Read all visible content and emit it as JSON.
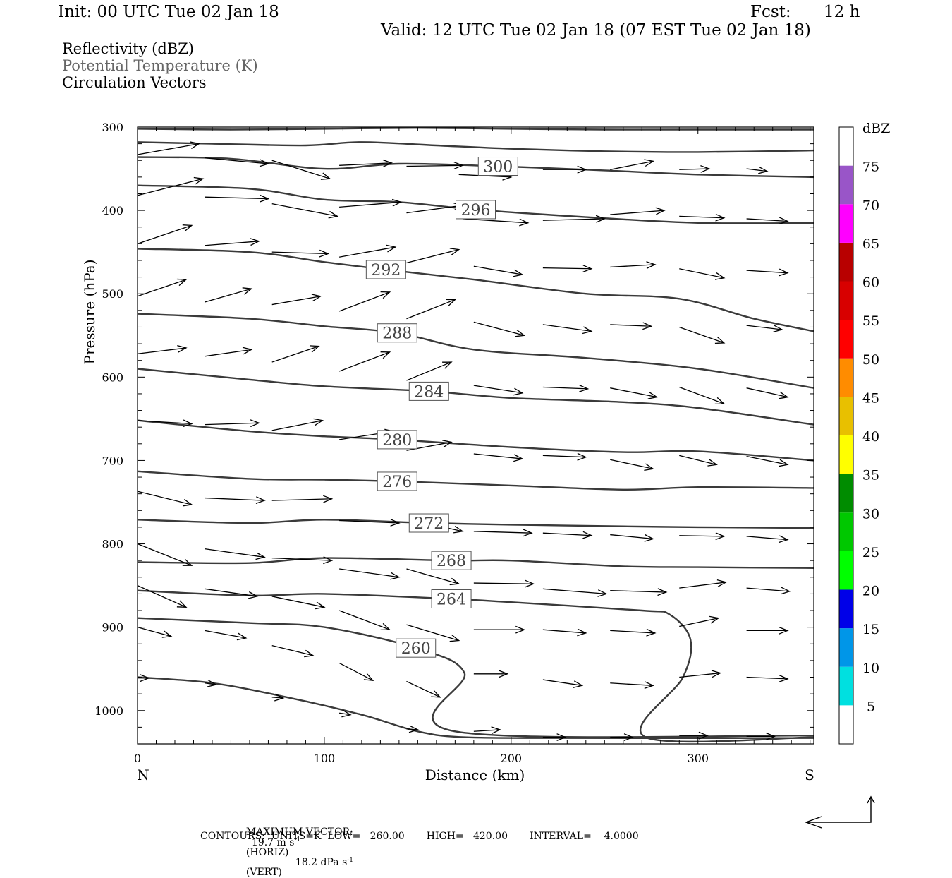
{
  "header": {
    "init": "Init: 00 UTC Tue 02 Jan 18",
    "fcst_label": "Fcst:",
    "fcst_value": "12 h",
    "valid": "Valid: 12 UTC Tue 02 Jan 18 (07 EST Tue 02 Jan 18)"
  },
  "legend": {
    "line1": "Reflectivity (dBZ)",
    "line2": "Potential Temperature (K)",
    "line3": "Circulation Vectors",
    "line2_color": "#666666"
  },
  "footer": {
    "max_vector_label": "MAXIMUM VECTOR:",
    "horiz_value": "19.7 m s",
    "horiz_exp": "-1",
    "horiz_tag": "(HORIZ)",
    "vert_value": "18.2 dPa s",
    "vert_exp": "-1",
    "vert_tag": "(VERT)",
    "contours_line": "CONTOURS:  UNITS=K  LOW=   260.00       HIGH=   420.00       INTERVAL=    4.0000"
  },
  "chart_data": {
    "type": "line",
    "xlabel": "Distance (km)",
    "ylabel": "Pressure (hPa)",
    "x_ticks": [
      0,
      100,
      200,
      300
    ],
    "y_ticks": [
      300,
      400,
      500,
      600,
      700,
      800,
      900,
      1000
    ],
    "xlim": [
      0,
      362
    ],
    "ylim": [
      300,
      1040
    ],
    "y_inverted": true,
    "left_end_label": "N",
    "right_end_label": "S",
    "colorbar": {
      "unit": "dBZ",
      "levels": [
        5,
        10,
        15,
        20,
        25,
        30,
        35,
        40,
        45,
        50,
        55,
        60,
        65,
        70,
        75
      ],
      "colors": [
        "#ffffff",
        "#00e0e0",
        "#0096e8",
        "#0000e8",
        "#00ff00",
        "#00c800",
        "#008c00",
        "#ffff00",
        "#e8c000",
        "#ff8c00",
        "#ff0000",
        "#d80000",
        "#b80000",
        "#ff00ff",
        "#9955c8",
        "#ffffff"
      ]
    },
    "isentropes": [
      {
        "label": "",
        "points": [
          [
            0,
            302
          ],
          [
            50,
            303
          ],
          [
            100,
            302
          ],
          [
            150,
            301
          ],
          [
            200,
            302
          ],
          [
            250,
            303
          ],
          [
            300,
            303
          ],
          [
            362,
            303
          ]
        ]
      },
      {
        "label": "",
        "points": [
          [
            0,
            318
          ],
          [
            40,
            320
          ],
          [
            90,
            322
          ],
          [
            120,
            318
          ],
          [
            160,
            322
          ],
          [
            200,
            326
          ],
          [
            250,
            329
          ],
          [
            300,
            330
          ],
          [
            362,
            328
          ]
        ]
      },
      {
        "label": "300",
        "label_x": 193,
        "points": [
          [
            0,
            336
          ],
          [
            50,
            338
          ],
          [
            100,
            350
          ],
          [
            140,
            344
          ],
          [
            193,
            347
          ],
          [
            250,
            352
          ],
          [
            300,
            357
          ],
          [
            362,
            360
          ]
        ]
      },
      {
        "label": "296",
        "label_x": 181,
        "points": [
          [
            0,
            370
          ],
          [
            60,
            374
          ],
          [
            100,
            387
          ],
          [
            140,
            390
          ],
          [
            181,
            399
          ],
          [
            240,
            408
          ],
          [
            300,
            415
          ],
          [
            362,
            415
          ]
        ]
      },
      {
        "label": "292",
        "label_x": 133,
        "points": [
          [
            0,
            446
          ],
          [
            60,
            450
          ],
          [
            100,
            462
          ],
          [
            133,
            471
          ],
          [
            180,
            483
          ],
          [
            240,
            500
          ],
          [
            290,
            506
          ],
          [
            330,
            530
          ],
          [
            362,
            545
          ]
        ]
      },
      {
        "label": "288",
        "label_x": 139,
        "points": [
          [
            0,
            524
          ],
          [
            60,
            530
          ],
          [
            100,
            539
          ],
          [
            139,
            547
          ],
          [
            180,
            567
          ],
          [
            240,
            577
          ],
          [
            300,
            590
          ],
          [
            362,
            613
          ]
        ]
      },
      {
        "label": "284",
        "label_x": 156,
        "points": [
          [
            0,
            590
          ],
          [
            60,
            603
          ],
          [
            100,
            611
          ],
          [
            156,
            617
          ],
          [
            200,
            625
          ],
          [
            260,
            630
          ],
          [
            300,
            637
          ],
          [
            362,
            657
          ]
        ]
      },
      {
        "label": "280",
        "label_x": 139,
        "points": [
          [
            0,
            652
          ],
          [
            60,
            665
          ],
          [
            100,
            671
          ],
          [
            139,
            675
          ],
          [
            200,
            684
          ],
          [
            260,
            690
          ],
          [
            300,
            689
          ],
          [
            362,
            700
          ]
        ]
      },
      {
        "label": "276",
        "label_x": 139,
        "points": [
          [
            0,
            713
          ],
          [
            60,
            722
          ],
          [
            100,
            723
          ],
          [
            139,
            725
          ],
          [
            200,
            730
          ],
          [
            260,
            735
          ],
          [
            300,
            732
          ],
          [
            362,
            733
          ]
        ]
      },
      {
        "label": "272",
        "label_x": 156,
        "points": [
          [
            0,
            771
          ],
          [
            60,
            775
          ],
          [
            100,
            771
          ],
          [
            156,
            775
          ],
          [
            200,
            777
          ],
          [
            260,
            779
          ],
          [
            300,
            780
          ],
          [
            362,
            781
          ]
        ]
      },
      {
        "label": "268",
        "label_x": 168,
        "points": [
          [
            0,
            822
          ],
          [
            60,
            823
          ],
          [
            100,
            817
          ],
          [
            168,
            820
          ],
          [
            200,
            820
          ],
          [
            260,
            827
          ],
          [
            300,
            828
          ],
          [
            362,
            829
          ]
        ]
      },
      {
        "label": "264",
        "label_x": 168,
        "points": [
          [
            0,
            856
          ],
          [
            60,
            862
          ],
          [
            100,
            860
          ],
          [
            168,
            866
          ],
          [
            200,
            870
          ],
          [
            270,
            880
          ],
          [
            285,
            885
          ],
          [
            296,
            915
          ],
          [
            292,
            960
          ],
          [
            272,
            1032
          ],
          [
            362,
            1032
          ]
        ]
      },
      {
        "label": "260",
        "label_x": 149,
        "points": [
          [
            0,
            889
          ],
          [
            60,
            895
          ],
          [
            100,
            900
          ],
          [
            149,
            925
          ],
          [
            175,
            955
          ],
          [
            170,
            1025
          ],
          [
            362,
            1030
          ]
        ]
      },
      {
        "label": "",
        "points": [
          [
            0,
            960
          ],
          [
            40,
            967
          ],
          [
            80,
            984
          ],
          [
            120,
            1005
          ],
          [
            150,
            1025
          ],
          [
            175,
            1032
          ],
          [
            230,
            1033
          ],
          [
            362,
            1033
          ]
        ]
      }
    ],
    "vectors": [
      [
        0,
        333,
        33,
        320
      ],
      [
        36,
        337,
        70,
        344
      ],
      [
        72,
        340,
        103,
        362
      ],
      [
        108,
        346,
        136,
        343
      ],
      [
        144,
        347,
        174,
        346
      ],
      [
        172,
        357,
        200,
        360
      ],
      [
        217,
        351,
        240,
        351
      ],
      [
        253,
        351,
        276,
        341
      ],
      [
        290,
        351,
        306,
        350
      ],
      [
        326,
        350,
        337,
        353
      ],
      [
        0,
        382,
        35,
        362
      ],
      [
        36,
        384,
        70,
        386
      ],
      [
        72,
        392,
        107,
        407
      ],
      [
        108,
        396,
        141,
        390
      ],
      [
        144,
        403,
        174,
        394
      ],
      [
        174,
        410,
        209,
        415
      ],
      [
        217,
        412,
        250,
        410
      ],
      [
        253,
        405,
        282,
        400
      ],
      [
        290,
        407,
        314,
        409
      ],
      [
        326,
        410,
        348,
        413
      ],
      [
        0,
        440,
        29,
        418
      ],
      [
        36,
        442,
        65,
        437
      ],
      [
        72,
        450,
        102,
        452
      ],
      [
        108,
        456,
        138,
        444
      ],
      [
        144,
        463,
        172,
        447
      ],
      [
        180,
        467,
        206,
        477
      ],
      [
        217,
        469,
        243,
        470
      ],
      [
        253,
        468,
        277,
        465
      ],
      [
        290,
        470,
        314,
        481
      ],
      [
        326,
        472,
        348,
        475
      ],
      [
        0,
        503,
        26,
        483
      ],
      [
        36,
        510,
        61,
        494
      ],
      [
        72,
        513,
        98,
        503
      ],
      [
        108,
        521,
        135,
        498
      ],
      [
        144,
        530,
        170,
        507
      ],
      [
        180,
        534,
        207,
        550
      ],
      [
        217,
        537,
        243,
        545
      ],
      [
        253,
        537,
        275,
        539
      ],
      [
        290,
        540,
        314,
        559
      ],
      [
        326,
        538,
        345,
        543
      ],
      [
        0,
        572,
        26,
        565
      ],
      [
        36,
        575,
        61,
        567
      ],
      [
        72,
        582,
        97,
        563
      ],
      [
        108,
        593,
        135,
        570
      ],
      [
        144,
        604,
        168,
        582
      ],
      [
        180,
        610,
        206,
        619
      ],
      [
        217,
        612,
        241,
        614
      ],
      [
        253,
        613,
        278,
        624
      ],
      [
        290,
        612,
        314,
        632
      ],
      [
        326,
        613,
        348,
        624
      ],
      [
        0,
        652,
        29,
        656
      ],
      [
        36,
        657,
        65,
        655
      ],
      [
        72,
        664,
        99,
        652
      ],
      [
        108,
        675,
        137,
        665
      ],
      [
        144,
        688,
        168,
        678
      ],
      [
        180,
        692,
        206,
        698
      ],
      [
        217,
        694,
        240,
        696
      ],
      [
        253,
        699,
        276,
        710
      ],
      [
        290,
        694,
        310,
        705
      ],
      [
        326,
        695,
        348,
        705
      ],
      [
        0,
        737,
        29,
        753
      ],
      [
        36,
        745,
        68,
        748
      ],
      [
        72,
        748,
        104,
        746
      ],
      [
        108,
        772,
        140,
        775
      ],
      [
        156,
        776,
        174,
        785
      ],
      [
        180,
        785,
        211,
        787
      ],
      [
        217,
        787,
        243,
        790
      ],
      [
        253,
        789,
        276,
        794
      ],
      [
        290,
        790,
        314,
        791
      ],
      [
        326,
        791,
        348,
        795
      ],
      [
        0,
        800,
        29,
        826
      ],
      [
        36,
        806,
        68,
        816
      ],
      [
        72,
        817,
        104,
        820
      ],
      [
        108,
        830,
        140,
        840
      ],
      [
        144,
        830,
        172,
        848
      ],
      [
        180,
        847,
        212,
        848
      ],
      [
        217,
        854,
        251,
        860
      ],
      [
        253,
        856,
        283,
        858
      ],
      [
        290,
        853,
        315,
        846
      ],
      [
        326,
        853,
        349,
        857
      ],
      [
        0,
        850,
        26,
        876
      ],
      [
        36,
        854,
        64,
        863
      ],
      [
        72,
        863,
        100,
        876
      ],
      [
        108,
        880,
        135,
        903
      ],
      [
        144,
        897,
        172,
        916
      ],
      [
        180,
        903,
        207,
        903
      ],
      [
        217,
        903,
        240,
        907
      ],
      [
        253,
        904,
        277,
        907
      ],
      [
        290,
        899,
        311,
        889
      ],
      [
        326,
        904,
        348,
        904
      ],
      [
        0,
        900,
        18,
        911
      ],
      [
        36,
        904,
        58,
        913
      ],
      [
        72,
        922,
        94,
        934
      ],
      [
        108,
        943,
        126,
        964
      ],
      [
        144,
        965,
        162,
        984
      ],
      [
        180,
        956,
        198,
        956
      ],
      [
        217,
        963,
        238,
        970
      ],
      [
        253,
        967,
        276,
        970
      ],
      [
        290,
        960,
        312,
        955
      ],
      [
        326,
        960,
        348,
        962
      ],
      [
        0,
        961,
        6,
        961
      ],
      [
        36,
        967,
        42,
        969
      ],
      [
        72,
        984,
        78,
        985
      ],
      [
        108,
        1003,
        114,
        1005
      ],
      [
        144,
        1022,
        150,
        1023
      ],
      [
        180,
        1025,
        194,
        1023
      ],
      [
        217,
        1032,
        229,
        1032
      ],
      [
        253,
        1032,
        265,
        1032
      ],
      [
        290,
        1030,
        305,
        1030
      ],
      [
        326,
        1031,
        341,
        1031
      ]
    ]
  }
}
